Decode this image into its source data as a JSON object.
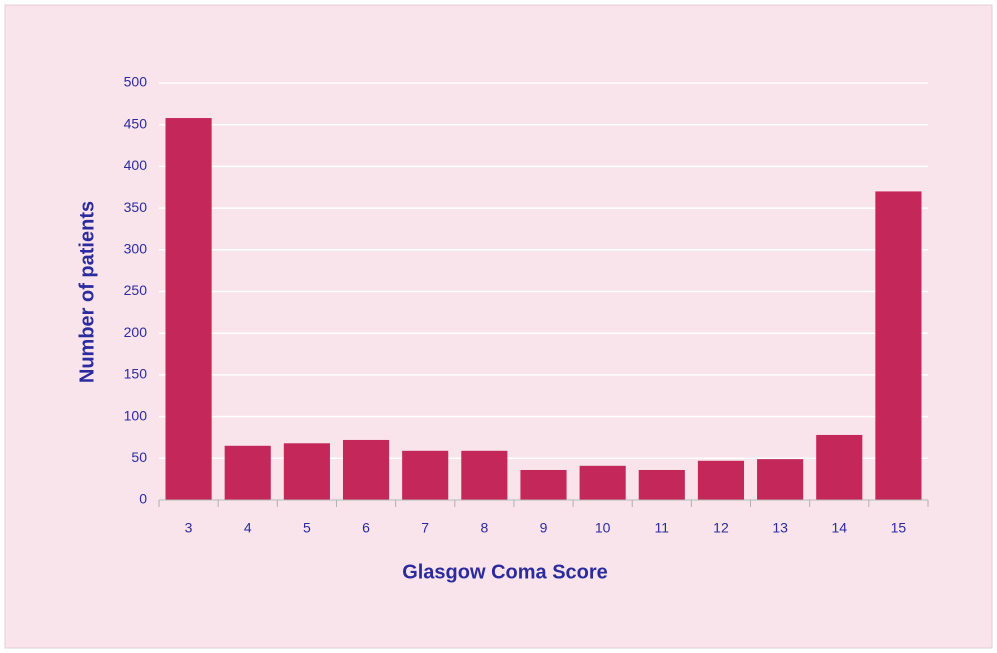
{
  "chart_data": {
    "type": "bar",
    "x_label": "Glasgow Coma Score",
    "y_label": "Number of patients",
    "categories": [
      "3",
      "4",
      "5",
      "6",
      "7",
      "8",
      "9",
      "10",
      "11",
      "12",
      "13",
      "14",
      "15"
    ],
    "values": [
      458,
      65,
      68,
      72,
      59,
      59,
      36,
      41,
      36,
      47,
      49,
      78,
      370
    ],
    "color": "#c4285a",
    "ylim": [
      0,
      500
    ],
    "yticks": [
      0,
      50,
      100,
      150,
      200,
      250,
      300,
      350,
      400,
      450,
      500
    ],
    "grid": true
  }
}
